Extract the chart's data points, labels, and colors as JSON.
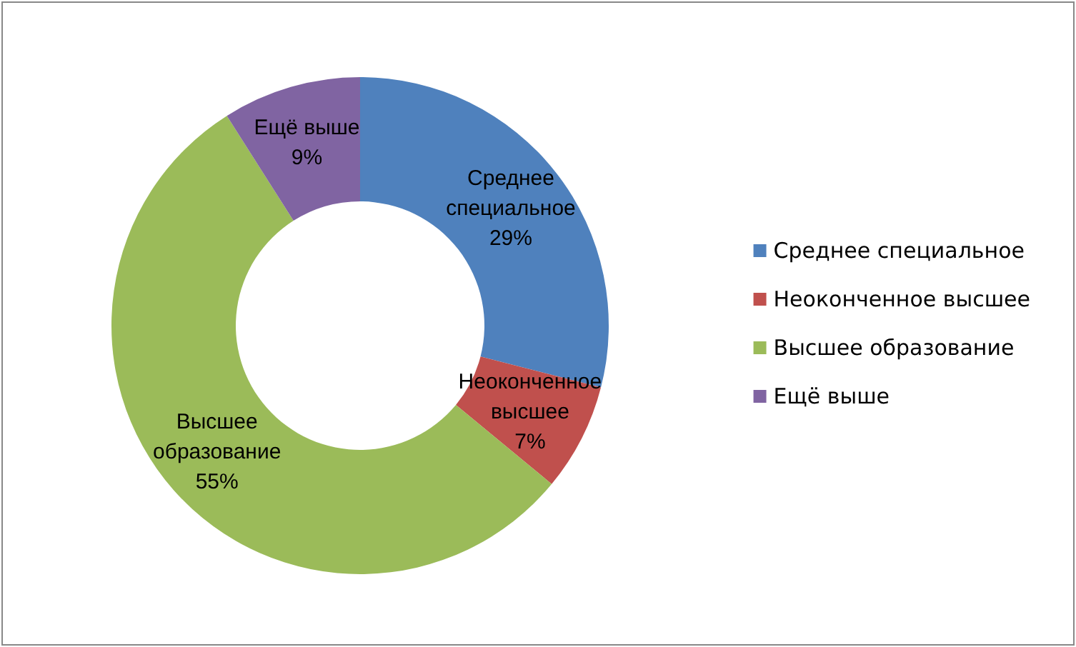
{
  "chart_data": {
    "type": "donut",
    "categories": [
      "Среднее специальное",
      "Неоконченное высшее",
      "Высшее образование",
      "Ещё выше"
    ],
    "values": [
      29,
      7,
      55,
      9
    ],
    "value_labels": [
      "29%",
      "7%",
      "55%",
      "9%"
    ],
    "colors": [
      "#4f81bd",
      "#c0504d",
      "#9bbb59",
      "#8064a2"
    ],
    "legend": "right"
  }
}
